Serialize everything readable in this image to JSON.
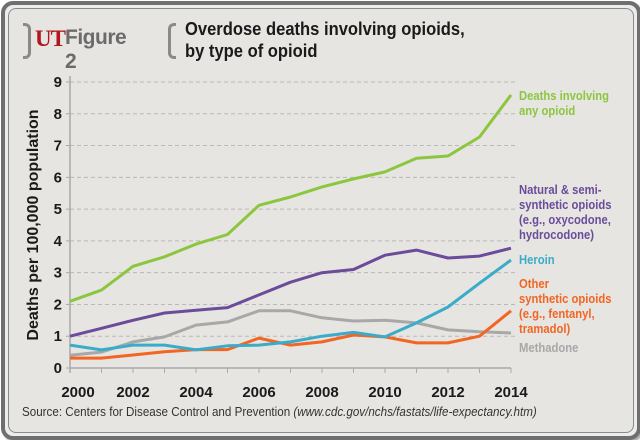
{
  "header": {
    "brand": "UT",
    "figure_label": "Figure 2",
    "title_line1": "Overdose deaths involving opioids,",
    "title_line2": "by type of opioid"
  },
  "source": {
    "prefix": "Source: Centers for Disease Control and Prevention ",
    "url": "(www.cdc.gov/nchs/fastats/life-expectancy.htm)"
  },
  "colors": {
    "any_opioid": "#8cc63f",
    "natural_semi": "#6b4c9a",
    "heroin": "#3aacc9",
    "other_synthetic": "#f26522",
    "methadone": "#a8a8a8",
    "brand_red": "#b5151b"
  },
  "chart_data": {
    "type": "line",
    "title": "Overdose deaths involving opioids, by type of opioid",
    "xlabel": "",
    "ylabel": "Deaths per 100,000 population",
    "x": [
      2000,
      2001,
      2002,
      2003,
      2004,
      2005,
      2006,
      2007,
      2008,
      2009,
      2010,
      2011,
      2012,
      2013,
      2014
    ],
    "x_tick_labels": [
      "2000",
      "2002",
      "2004",
      "2006",
      "2008",
      "2010",
      "2012",
      "2014"
    ],
    "y_tick_labels": [
      "0",
      "1",
      "2",
      "3",
      "4",
      "5",
      "6",
      "7",
      "8",
      "9"
    ],
    "xlim": [
      2000,
      2014
    ],
    "ylim": [
      0,
      9
    ],
    "grid": true,
    "legend_position": "right (inline labels)",
    "series": [
      {
        "key": "any_opioid",
        "name": "Deaths involving any opioid",
        "label": "Deaths involving\nany opioid",
        "values": [
          2.1,
          2.45,
          3.2,
          3.5,
          3.9,
          4.2,
          5.12,
          5.38,
          5.7,
          5.95,
          6.17,
          6.6,
          6.67,
          7.27,
          8.59
        ]
      },
      {
        "key": "natural_semi",
        "name": "Natural & semi-synthetic opioids (e.g., oxycodone, hydrocodone)",
        "label": "Natural & semi-\nsynthetic opioids\n(e.g., oxycodone,\nhydrocodone)",
        "values": [
          1.0,
          1.25,
          1.5,
          1.73,
          1.82,
          1.9,
          2.3,
          2.7,
          3.0,
          3.1,
          3.55,
          3.71,
          3.46,
          3.52,
          3.77
        ]
      },
      {
        "key": "heroin",
        "name": "Heroin",
        "label": "Heroin",
        "values": [
          0.72,
          0.57,
          0.72,
          0.72,
          0.57,
          0.7,
          0.72,
          0.82,
          1.0,
          1.12,
          0.98,
          1.42,
          1.92,
          2.67,
          3.4
        ]
      },
      {
        "key": "other_synthetic",
        "name": "Other synthetic opioids (e.g., fentanyl, tramadol)",
        "label": "Other\nsynthetic opioids\n(e.g., fentanyl,\ntramadol)",
        "values": [
          0.31,
          0.31,
          0.41,
          0.51,
          0.58,
          0.58,
          0.94,
          0.72,
          0.82,
          1.04,
          0.98,
          0.79,
          0.79,
          1.0,
          1.8
        ]
      },
      {
        "key": "methadone",
        "name": "Methadone",
        "label": "Methadone",
        "values": [
          0.4,
          0.5,
          0.82,
          0.98,
          1.35,
          1.45,
          1.8,
          1.8,
          1.58,
          1.48,
          1.5,
          1.42,
          1.2,
          1.14,
          1.1
        ]
      }
    ]
  }
}
